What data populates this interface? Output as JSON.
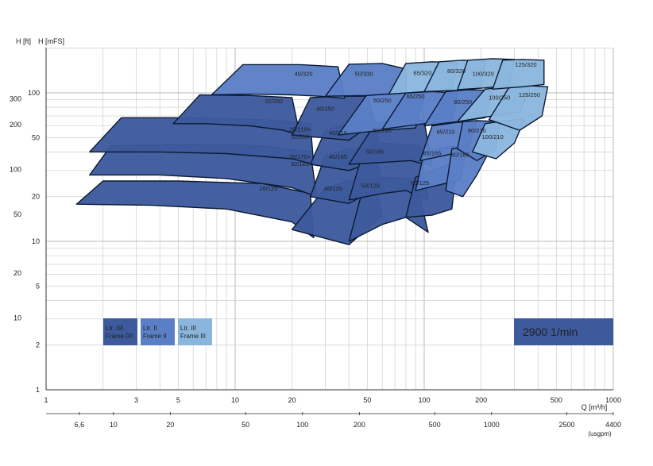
{
  "chart_data": {
    "type": "area",
    "title": "",
    "xlabel": "Q [m³/h]",
    "xlabel_secondary": "(usgpm)",
    "ylabel_left_outer": "H [ft]",
    "ylabel_left_inner": "H [mFS]",
    "x_scale": "log",
    "y_scale": "log",
    "xlim": [
      1,
      1000
    ],
    "ylim": [
      1,
      200
    ],
    "grid": true,
    "x_ticks": [
      "1",
      "3",
      "5",
      "10",
      "20",
      "50",
      "100",
      "200",
      "500",
      "1000"
    ],
    "x_tick_values": [
      1,
      3,
      5,
      10,
      20,
      50,
      100,
      200,
      500,
      1000
    ],
    "usgpm_ticks": [
      {
        "label": "6,6",
        "q": 1.5
      },
      {
        "label": "10",
        "q": 2.27
      },
      {
        "label": "20",
        "q": 4.54
      },
      {
        "label": "50",
        "q": 11.36
      },
      {
        "label": "100",
        "q": 22.7
      },
      {
        "label": "200",
        "q": 45.4
      },
      {
        "label": "500",
        "q": 113.6
      },
      {
        "label": "1000",
        "q": 227
      },
      {
        "label": "2500",
        "q": 568
      },
      {
        "label": "4400",
        "q": 1000
      }
    ],
    "y_ticks_m": [
      "1",
      "2",
      "5",
      "10",
      "20",
      "50",
      "100"
    ],
    "y_tick_values_m": [
      1,
      2,
      5,
      10,
      20,
      50,
      100
    ],
    "y_ticks_ft": [
      {
        "label": "10",
        "m": 3.05
      },
      {
        "label": "20",
        "m": 6.1
      },
      {
        "label": "50",
        "m": 15.2
      },
      {
        "label": "100",
        "m": 30.5
      },
      {
        "label": "200",
        "m": 61
      },
      {
        "label": "300",
        "m": 91.4
      }
    ],
    "speed_label": "2900 1/min",
    "legend": [
      {
        "line1": "Ltr. 0/I",
        "line2": "Frame 0/I",
        "color": "#3d5a9c"
      },
      {
        "line1": "Ltr. II",
        "line2": "Frame II",
        "color": "#5b7fc6"
      },
      {
        "line1": "Ltr. III",
        "line2": "Frame III",
        "color": "#8ab6de"
      }
    ],
    "regions": [
      {
        "label": "26/125",
        "frame": 0,
        "q": [
          1.45,
          3.6,
          9,
          20,
          26,
          25,
          14,
          5,
          2
        ],
        "h": [
          17.8,
          17.5,
          16.5,
          13.5,
          10.6,
          21,
          24.5,
          25.5,
          25.5
        ],
        "label_q": 15,
        "label_h": 22
      },
      {
        "label": "26/170+ 32/165",
        "frame": 0,
        "q": [
          1.7,
          4,
          9,
          20,
          27,
          25,
          14,
          6,
          2.2
        ],
        "h": [
          28,
          28,
          26.5,
          23,
          20,
          40,
          44,
          45,
          44
        ],
        "label_q": 22,
        "label_h": 36
      },
      {
        "label": "26/210+ 32/210",
        "frame": 0,
        "q": [
          1.7,
          4,
          9,
          20,
          26,
          25,
          14,
          6,
          2.5
        ],
        "h": [
          40,
          40,
          39,
          36,
          33,
          62,
          66,
          68,
          68
        ],
        "label_q": 22,
        "label_h": 55
      },
      {
        "label": "40/125",
        "frame": 0,
        "q": [
          20,
          40,
          60,
          55,
          40,
          30
        ],
        "h": [
          12,
          9.5,
          15,
          25,
          25.5,
          23
        ],
        "label_q": 33,
        "label_h": 22
      },
      {
        "label": "40/165",
        "frame": 0,
        "q": [
          25,
          40,
          60,
          55,
          40,
          30
        ],
        "h": [
          20,
          18,
          24,
          42,
          42,
          38
        ],
        "label_q": 35,
        "label_h": 36
      },
      {
        "label": "40/210",
        "frame": 0,
        "q": [
          25,
          40,
          60,
          55,
          40,
          30
        ],
        "h": [
          33,
          30,
          36,
          62,
          62,
          56
        ],
        "label_q": 35,
        "label_h": 52
      },
      {
        "label": "50/125",
        "frame": 0,
        "q": [
          40,
          60,
          80,
          105,
          90,
          60,
          48
        ],
        "h": [
          10,
          13,
          14.5,
          11.5,
          26.5,
          27,
          24
        ],
        "label_q": 52,
        "label_h": 23
      },
      {
        "label": "50/165",
        "frame": 0,
        "q": [
          40,
          60,
          80,
          105,
          95,
          60,
          48
        ],
        "h": [
          19,
          21,
          22,
          19,
          44,
          46,
          42
        ],
        "label_q": 55,
        "label_h": 39
      },
      {
        "label": "50/210",
        "frame": 0,
        "q": [
          40,
          60,
          85,
          110,
          100,
          70,
          55
        ],
        "h": [
          33,
          34,
          35,
          32,
          65,
          67,
          62
        ],
        "label_q": 60,
        "label_h": 54
      },
      {
        "label": "65/125",
        "frame": 0,
        "q": [
          80,
          110,
          140,
          150,
          110,
          90
        ],
        "h": [
          14.5,
          15,
          16.5,
          35,
          30,
          27
        ],
        "label_q": 95,
        "label_h": 24
      },
      {
        "label": "65/165",
        "frame": 1,
        "q": [
          90,
          120,
          155,
          170,
          130,
          100
        ],
        "h": [
          22,
          24,
          26,
          45,
          43,
          40
        ],
        "label_q": 110,
        "label_h": 38
      },
      {
        "label": "65/210",
        "frame": 1,
        "q": [
          95,
          130,
          170,
          190,
          145,
          110
        ],
        "h": [
          35,
          38,
          41,
          65,
          63,
          60
        ],
        "label_q": 130,
        "label_h": 53
      },
      {
        "label": "80/165",
        "frame": 1,
        "q": [
          130,
          160,
          190,
          220,
          160,
          140
        ],
        "h": [
          22,
          20,
          28,
          40,
          43,
          42
        ],
        "label_q": 155,
        "label_h": 37
      },
      {
        "label": "80/210",
        "frame": 1,
        "q": [
          150,
          190,
          240,
          250,
          190,
          160
        ],
        "h": [
          42,
          35,
          42,
          64,
          65,
          64
        ],
        "label_q": 190,
        "label_h": 54
      },
      {
        "label": "100/210",
        "frame": 2,
        "q": [
          180,
          240,
          300,
          340,
          250,
          210
        ],
        "h": [
          40,
          36,
          46,
          67,
          64,
          62
        ],
        "label_q": 230,
        "label_h": 49
      },
      {
        "label": "32/250",
        "frame": 0,
        "q": [
          4.7,
          7,
          12,
          18,
          22,
          20,
          12,
          6.5
        ],
        "h": [
          62,
          62,
          60,
          56,
          52,
          93,
          96,
          97
        ],
        "label_q": 16,
        "label_h": 85
      },
      {
        "label": "40/250",
        "frame": 0,
        "q": [
          20,
          40,
          55,
          50,
          35,
          25
        ],
        "h": [
          52,
          48,
          64,
          95,
          95,
          93
        ],
        "label_q": 30,
        "label_h": 76
      },
      {
        "label": "50/250",
        "frame": 1,
        "q": [
          35,
          60,
          90,
          100,
          75,
          50
        ],
        "h": [
          52,
          56,
          58,
          98,
          100,
          98
        ],
        "label_q": 60,
        "label_h": 86
      },
      {
        "label": "65/250",
        "frame": 1,
        "q": [
          60,
          100,
          140,
          150,
          110,
          80
        ],
        "h": [
          57,
          62,
          64,
          100,
          102,
          100
        ],
        "label_q": 90,
        "label_h": 92
      },
      {
        "label": "80/250",
        "frame": 1,
        "q": [
          100,
          150,
          210,
          230,
          170,
          130
        ],
        "h": [
          60,
          64,
          68,
          104,
          105,
          102
        ],
        "label_q": 160,
        "label_h": 84
      },
      {
        "label": "100/250",
        "frame": 2,
        "q": [
          150,
          230,
          320,
          360,
          270,
          210
        ],
        "h": [
          64,
          70,
          74,
          108,
          110,
          106
        ],
        "label_q": 250,
        "label_h": 90
      },
      {
        "label": "125/250",
        "frame": 2,
        "q": [
          220,
          320,
          420,
          450,
          350,
          280
        ],
        "h": [
          66,
          56,
          70,
          110,
          112,
          108
        ],
        "label_q": 360,
        "label_h": 94
      },
      {
        "label": "40/320",
        "frame": 1,
        "q": [
          7.5,
          12,
          20,
          28,
          38,
          35,
          22,
          11
        ],
        "h": [
          97,
          98,
          97,
          95,
          92,
          150,
          155,
          155
        ],
        "label_q": 23,
        "label_h": 130
      },
      {
        "label": "50/330",
        "frame": 1,
        "q": [
          30,
          50,
          80,
          80,
          60,
          40
        ],
        "h": [
          95,
          96,
          100,
          145,
          158,
          156
        ],
        "label_q": 48,
        "label_h": 130
      },
      {
        "label": "65/320",
        "frame": 2,
        "q": [
          65,
          100,
          140,
          150,
          110,
          80
        ],
        "h": [
          98,
          102,
          105,
          160,
          162,
          158
        ],
        "label_q": 98,
        "label_h": 132
      },
      {
        "label": "80/320",
        "frame": 2,
        "q": [
          100,
          150,
          200,
          210,
          160,
          120
        ],
        "h": [
          102,
          104,
          108,
          164,
          166,
          162
        ],
        "label_q": 148,
        "label_h": 136
      },
      {
        "label": "100/320",
        "frame": 2,
        "q": [
          150,
          210,
          280,
          300,
          230,
          170
        ],
        "h": [
          105,
          108,
          112,
          168,
          170,
          166
        ],
        "label_q": 205,
        "label_h": 130
      },
      {
        "label": "125/320",
        "frame": 2,
        "q": [
          230,
          330,
          430,
          430,
          330,
          260
        ],
        "h": [
          106,
          110,
          114,
          166,
          168,
          166
        ],
        "label_q": 345,
        "label_h": 150
      }
    ]
  }
}
